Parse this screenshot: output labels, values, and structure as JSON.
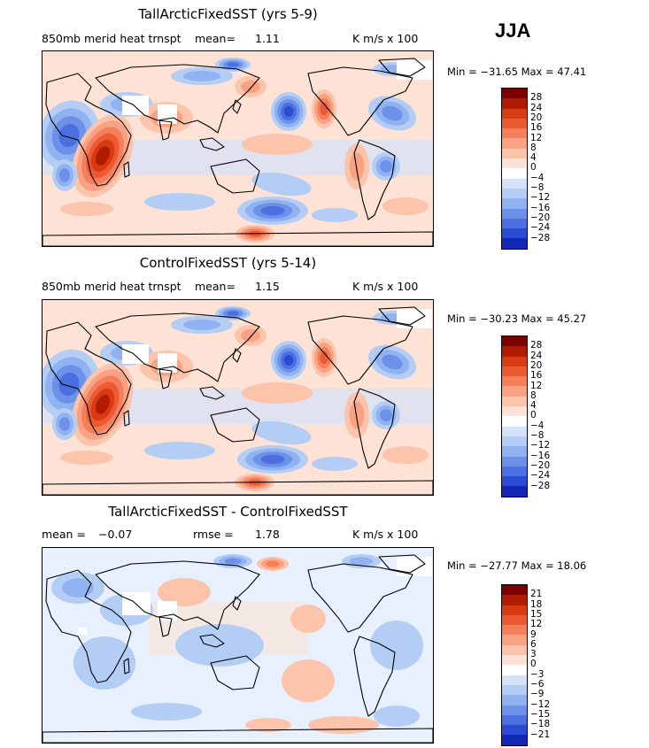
{
  "season": "JJA",
  "panels": [
    {
      "title": "TallArcticFixedSST (yrs 5-9)",
      "variable": "850mb merid heat trnspt",
      "mean_label": "mean=",
      "mean_value": "1.11",
      "units": "K m/s x 100",
      "min_max": "Min = −31.65 Max =  47.41",
      "kind": "abs",
      "colorbar_labels": [
        "28",
        "24",
        "20",
        "16",
        "12",
        "8",
        "4",
        "0",
        "−4",
        "−8",
        "−12",
        "−16",
        "−20",
        "−24",
        "−28"
      ]
    },
    {
      "title": "ControlFixedSST (yrs 5-14)",
      "variable": "850mb merid heat trnspt",
      "mean_label": "mean=",
      "mean_value": "1.15",
      "units": "K m/s x 100",
      "min_max": "Min = −30.23 Max =  45.27",
      "kind": "abs",
      "colorbar_labels": [
        "28",
        "24",
        "20",
        "16",
        "12",
        "8",
        "4",
        "0",
        "−4",
        "−8",
        "−12",
        "−16",
        "−20",
        "−24",
        "−28"
      ]
    },
    {
      "title": "TallArcticFixedSST - ControlFixedSST",
      "mean_label": "mean =",
      "mean_value": "−0.07",
      "rmse_label": "rmse =",
      "rmse_value": "1.78",
      "units": "K m/s x 100",
      "min_max": "Min = −27.77 Max =  18.06",
      "kind": "diff",
      "colorbar_labels": [
        "21",
        "18",
        "15",
        "12",
        "9",
        "6",
        "3",
        "0",
        "−3",
        "−6",
        "−9",
        "−12",
        "−15",
        "−18",
        "−21"
      ]
    }
  ],
  "colors": {
    "scale": [
      "#7d0000",
      "#b11c00",
      "#d83a12",
      "#ec5a33",
      "#f57f5a",
      "#f9a283",
      "#fbc4ab",
      "#fde2d5",
      "#ffffff",
      "#d4e3fa",
      "#b3cdf5",
      "#90b2f0",
      "#6c91e9",
      "#4b6fe0",
      "#2a4bd4",
      "#1326b8",
      "#080c8c"
    ],
    "coast": "#000000",
    "frame": "#000000"
  }
}
